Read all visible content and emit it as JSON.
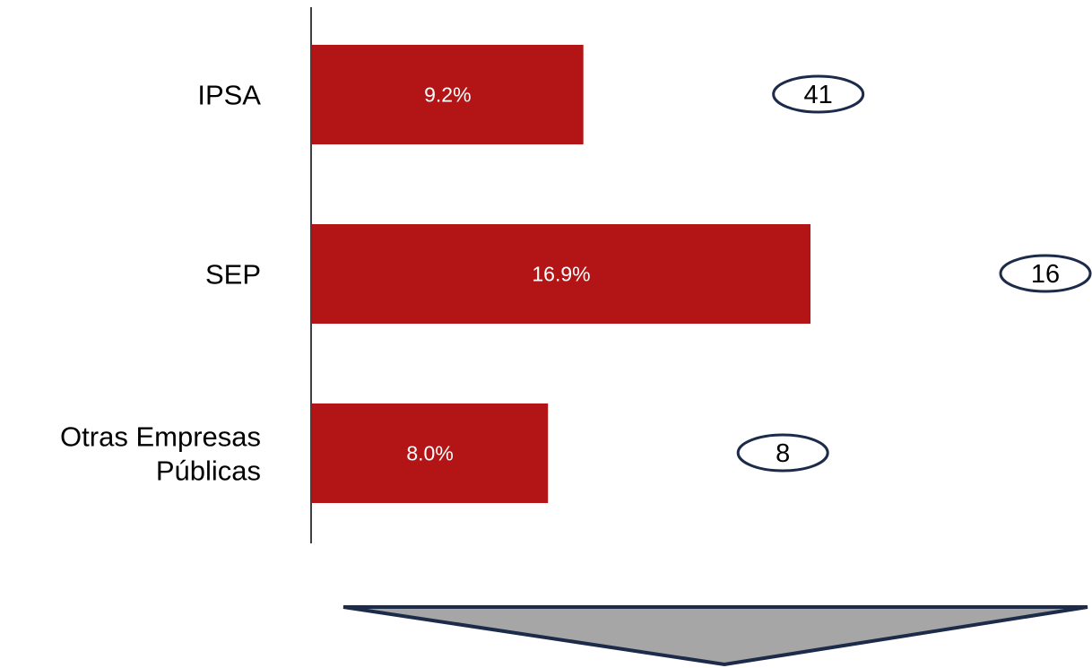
{
  "chart_data": {
    "type": "bar",
    "orientation": "horizontal",
    "categories": [
      [
        "IPSA"
      ],
      [
        "SEP"
      ],
      [
        "Otras Empresas",
        "Públicas"
      ]
    ],
    "values": [
      9.2,
      16.9,
      8.0
    ],
    "value_labels": [
      "9.2%",
      "16.9%",
      "8.0%"
    ],
    "counts": [
      "41",
      "16",
      "8"
    ],
    "grid": false,
    "legend": "none"
  },
  "colors": {
    "bar": "#b31516",
    "bar_text": "#ffffff",
    "axis": "#000000",
    "badge_stroke": "#1c2b4a",
    "arrow_fill": "#a6a6a6",
    "arrow_stroke": "#1c2b4a"
  }
}
